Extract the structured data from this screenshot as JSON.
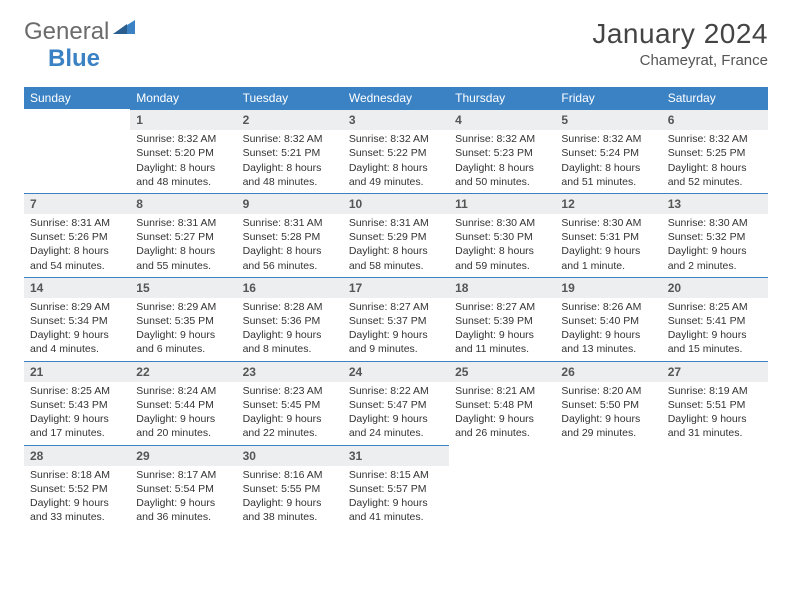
{
  "brand": {
    "part1": "General",
    "part2": "Blue"
  },
  "title": "January 2024",
  "location": "Chameyrat, France",
  "colors": {
    "header_bg": "#3b82c4",
    "header_text": "#ffffff",
    "daynum_bg": "#eceeef",
    "daynum_border": "#3b82c4",
    "body_text": "#333333",
    "title_text": "#444444",
    "logo_gray": "#6b6b6b",
    "logo_blue": "#3b82c4",
    "page_bg": "#ffffff"
  },
  "typography": {
    "title_fontsize": 28,
    "location_fontsize": 15,
    "header_fontsize": 12,
    "daynum_fontsize": 12,
    "cell_fontsize": 10.5
  },
  "weekdays": [
    "Sunday",
    "Monday",
    "Tuesday",
    "Wednesday",
    "Thursday",
    "Friday",
    "Saturday"
  ],
  "grid": {
    "rows": 5,
    "cols": 7,
    "start_offset": 1,
    "days_in_month": 31
  },
  "days": {
    "1": {
      "sunrise": "8:32 AM",
      "sunset": "5:20 PM",
      "daylight": "8 hours and 48 minutes."
    },
    "2": {
      "sunrise": "8:32 AM",
      "sunset": "5:21 PM",
      "daylight": "8 hours and 48 minutes."
    },
    "3": {
      "sunrise": "8:32 AM",
      "sunset": "5:22 PM",
      "daylight": "8 hours and 49 minutes."
    },
    "4": {
      "sunrise": "8:32 AM",
      "sunset": "5:23 PM",
      "daylight": "8 hours and 50 minutes."
    },
    "5": {
      "sunrise": "8:32 AM",
      "sunset": "5:24 PM",
      "daylight": "8 hours and 51 minutes."
    },
    "6": {
      "sunrise": "8:32 AM",
      "sunset": "5:25 PM",
      "daylight": "8 hours and 52 minutes."
    },
    "7": {
      "sunrise": "8:31 AM",
      "sunset": "5:26 PM",
      "daylight": "8 hours and 54 minutes."
    },
    "8": {
      "sunrise": "8:31 AM",
      "sunset": "5:27 PM",
      "daylight": "8 hours and 55 minutes."
    },
    "9": {
      "sunrise": "8:31 AM",
      "sunset": "5:28 PM",
      "daylight": "8 hours and 56 minutes."
    },
    "10": {
      "sunrise": "8:31 AM",
      "sunset": "5:29 PM",
      "daylight": "8 hours and 58 minutes."
    },
    "11": {
      "sunrise": "8:30 AM",
      "sunset": "5:30 PM",
      "daylight": "8 hours and 59 minutes."
    },
    "12": {
      "sunrise": "8:30 AM",
      "sunset": "5:31 PM",
      "daylight": "9 hours and 1 minute."
    },
    "13": {
      "sunrise": "8:30 AM",
      "sunset": "5:32 PM",
      "daylight": "9 hours and 2 minutes."
    },
    "14": {
      "sunrise": "8:29 AM",
      "sunset": "5:34 PM",
      "daylight": "9 hours and 4 minutes."
    },
    "15": {
      "sunrise": "8:29 AM",
      "sunset": "5:35 PM",
      "daylight": "9 hours and 6 minutes."
    },
    "16": {
      "sunrise": "8:28 AM",
      "sunset": "5:36 PM",
      "daylight": "9 hours and 8 minutes."
    },
    "17": {
      "sunrise": "8:27 AM",
      "sunset": "5:37 PM",
      "daylight": "9 hours and 9 minutes."
    },
    "18": {
      "sunrise": "8:27 AM",
      "sunset": "5:39 PM",
      "daylight": "9 hours and 11 minutes."
    },
    "19": {
      "sunrise": "8:26 AM",
      "sunset": "5:40 PM",
      "daylight": "9 hours and 13 minutes."
    },
    "20": {
      "sunrise": "8:25 AM",
      "sunset": "5:41 PM",
      "daylight": "9 hours and 15 minutes."
    },
    "21": {
      "sunrise": "8:25 AM",
      "sunset": "5:43 PM",
      "daylight": "9 hours and 17 minutes."
    },
    "22": {
      "sunrise": "8:24 AM",
      "sunset": "5:44 PM",
      "daylight": "9 hours and 20 minutes."
    },
    "23": {
      "sunrise": "8:23 AM",
      "sunset": "5:45 PM",
      "daylight": "9 hours and 22 minutes."
    },
    "24": {
      "sunrise": "8:22 AM",
      "sunset": "5:47 PM",
      "daylight": "9 hours and 24 minutes."
    },
    "25": {
      "sunrise": "8:21 AM",
      "sunset": "5:48 PM",
      "daylight": "9 hours and 26 minutes."
    },
    "26": {
      "sunrise": "8:20 AM",
      "sunset": "5:50 PM",
      "daylight": "9 hours and 29 minutes."
    },
    "27": {
      "sunrise": "8:19 AM",
      "sunset": "5:51 PM",
      "daylight": "9 hours and 31 minutes."
    },
    "28": {
      "sunrise": "8:18 AM",
      "sunset": "5:52 PM",
      "daylight": "9 hours and 33 minutes."
    },
    "29": {
      "sunrise": "8:17 AM",
      "sunset": "5:54 PM",
      "daylight": "9 hours and 36 minutes."
    },
    "30": {
      "sunrise": "8:16 AM",
      "sunset": "5:55 PM",
      "daylight": "9 hours and 38 minutes."
    },
    "31": {
      "sunrise": "8:15 AM",
      "sunset": "5:57 PM",
      "daylight": "9 hours and 41 minutes."
    }
  },
  "labels": {
    "sunrise": "Sunrise:",
    "sunset": "Sunset:",
    "daylight": "Daylight:"
  }
}
